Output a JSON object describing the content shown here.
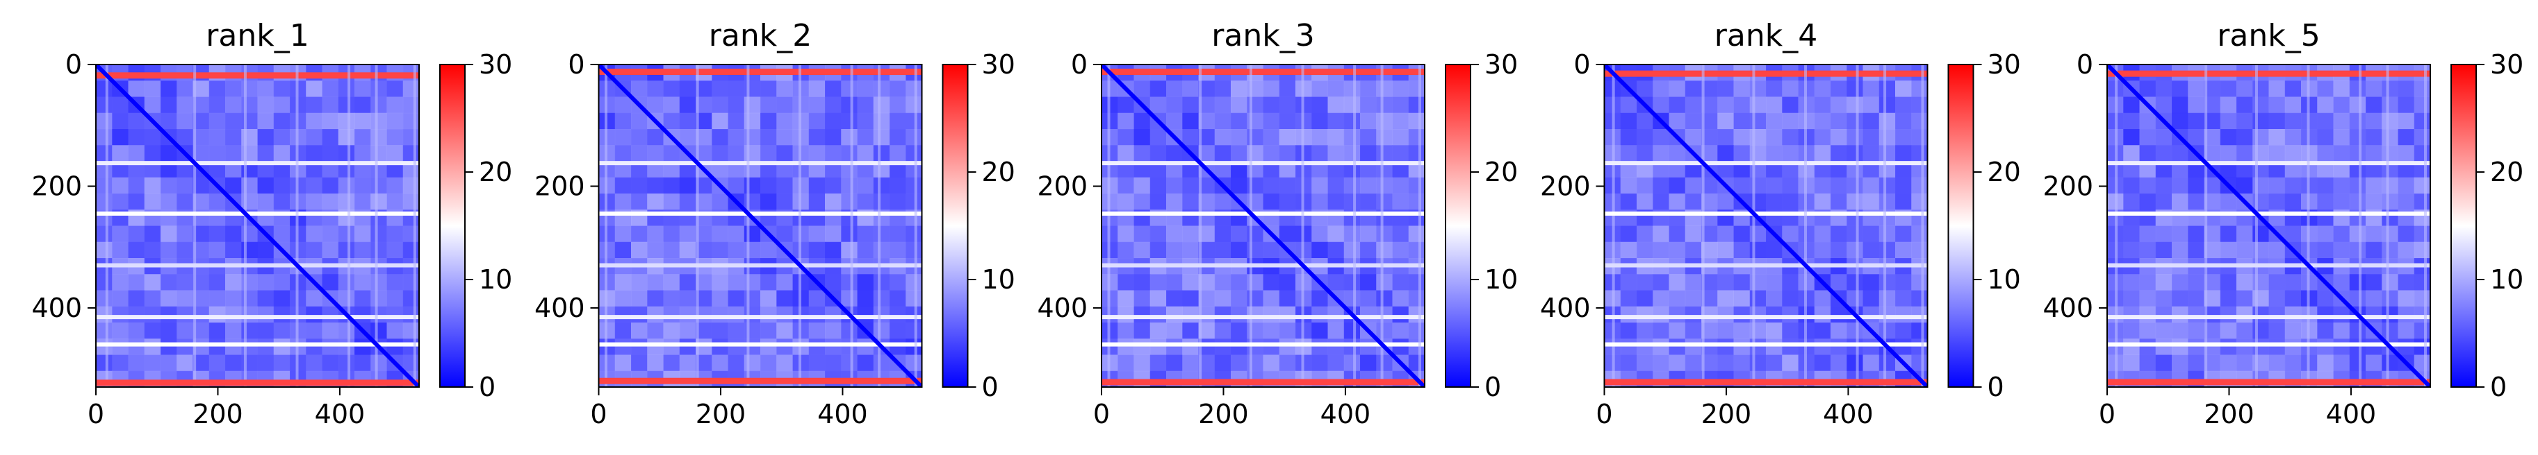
{
  "chart_data": [
    {
      "type": "heatmap",
      "title": "rank_1",
      "matrix_size": 530,
      "xlim": [
        0,
        530
      ],
      "ylim": [
        530,
        0
      ],
      "xticks": [
        0,
        200,
        400
      ],
      "yticks": [
        0,
        200,
        400
      ],
      "colorbar": {
        "min": 0,
        "max": 30,
        "ticks": [
          0,
          10,
          20,
          30
        ],
        "colormap": "bwr"
      },
      "bright_rows": [
        18,
        162,
        245,
        330,
        415,
        460,
        523
      ],
      "diagonal": true
    },
    {
      "type": "heatmap",
      "title": "rank_2",
      "matrix_size": 530,
      "xlim": [
        0,
        530
      ],
      "ylim": [
        530,
        0
      ],
      "xticks": [
        0,
        200,
        400
      ],
      "yticks": [
        0,
        200,
        400
      ],
      "colorbar": {
        "min": 0,
        "max": 30,
        "ticks": [
          0,
          10,
          20,
          30
        ],
        "colormap": "bwr"
      },
      "bright_rows": [
        12,
        162,
        245,
        330,
        415,
        460,
        520
      ],
      "diagonal": true
    },
    {
      "type": "heatmap",
      "title": "rank_3",
      "matrix_size": 530,
      "xlim": [
        0,
        530
      ],
      "ylim": [
        530,
        0
      ],
      "xticks": [
        0,
        200,
        400
      ],
      "yticks": [
        0,
        200,
        400
      ],
      "colorbar": {
        "min": 0,
        "max": 30,
        "ticks": [
          0,
          10,
          20,
          30
        ],
        "colormap": "bwr"
      },
      "bright_rows": [
        12,
        162,
        245,
        330,
        415,
        460,
        522
      ],
      "diagonal": true
    },
    {
      "type": "heatmap",
      "title": "rank_4",
      "matrix_size": 530,
      "xlim": [
        0,
        530
      ],
      "ylim": [
        530,
        0
      ],
      "xticks": [
        0,
        200,
        400
      ],
      "yticks": [
        0,
        200,
        400
      ],
      "colorbar": {
        "min": 0,
        "max": 30,
        "ticks": [
          0,
          10,
          20,
          30
        ],
        "colormap": "bwr"
      },
      "bright_rows": [
        15,
        162,
        245,
        330,
        415,
        460,
        522
      ],
      "diagonal": true
    },
    {
      "type": "heatmap",
      "title": "rank_5",
      "matrix_size": 530,
      "xlim": [
        0,
        530
      ],
      "ylim": [
        530,
        0
      ],
      "xticks": [
        0,
        200,
        400
      ],
      "yticks": [
        0,
        200,
        400
      ],
      "colorbar": {
        "min": 0,
        "max": 30,
        "ticks": [
          0,
          10,
          20,
          30
        ],
        "colormap": "bwr"
      },
      "bright_rows": [
        15,
        162,
        245,
        330,
        415,
        460,
        522
      ],
      "diagonal": true
    }
  ]
}
